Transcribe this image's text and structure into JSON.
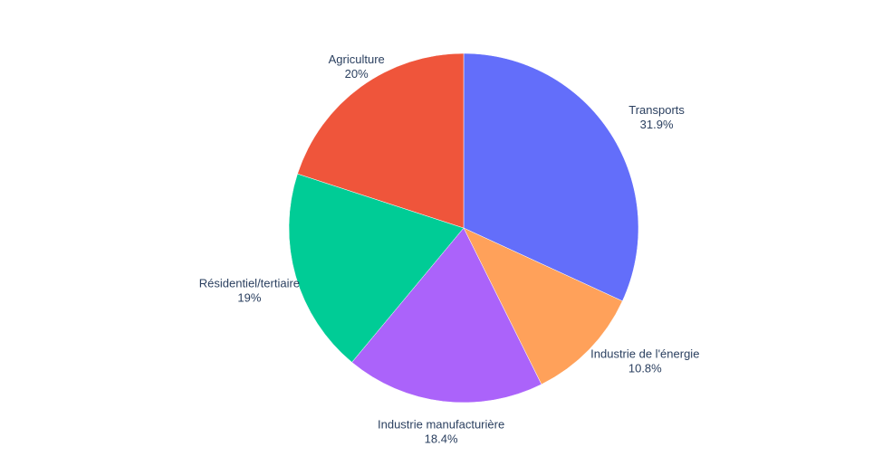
{
  "chart_data": {
    "type": "pie",
    "title": "",
    "direction": "clockwise",
    "start_angle_deg": 0,
    "slices": [
      {
        "label": "Transports",
        "percent_text": "31.9%",
        "value": 31.9,
        "color": "#636efa"
      },
      {
        "label": "Industrie de l'énergie",
        "percent_text": "10.8%",
        "value": 10.8,
        "color": "#ffa15a"
      },
      {
        "label": "Industrie manufacturière",
        "percent_text": "18.4%",
        "value": 18.4,
        "color": "#ab63fa"
      },
      {
        "label": "Résidentiel/tertiaire",
        "percent_text": "19%",
        "value": 19.0,
        "color": "#00cc96"
      },
      {
        "label": "Agriculture",
        "percent_text": "20%",
        "value": 20.0,
        "color": "#ef553b"
      }
    ]
  },
  "colors": {
    "background": "#ffffff",
    "label_text": "#2a3f5f",
    "slice_border": "#ffffff"
  }
}
